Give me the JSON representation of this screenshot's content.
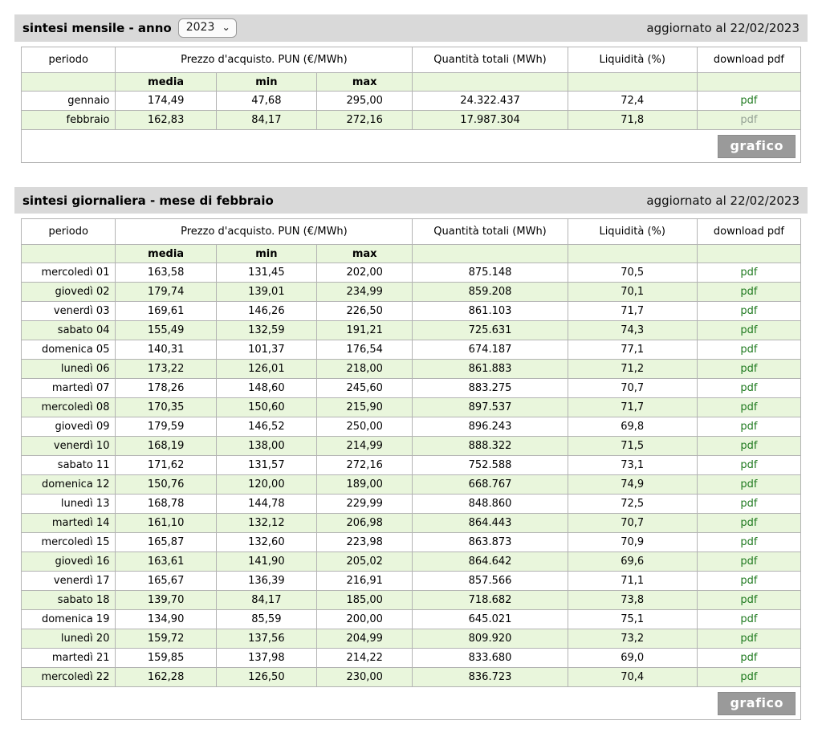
{
  "headers": {
    "periodo": "periodo",
    "prezzo": "Prezzo d'acquisto. PUN (€/MWh)",
    "media": "media",
    "min": "min",
    "max": "max",
    "quantita": "Quantità totali (MWh)",
    "liquidita": "Liquidità (%)",
    "download": "download pdf"
  },
  "monthly": {
    "title": "sintesi mensile - anno",
    "year_selected": "2023",
    "year_options": [
      "2023"
    ],
    "updated": "aggiornato al 22/02/2023",
    "grafico_label": "grafico",
    "rows": [
      {
        "periodo": "gennaio",
        "media": "174,49",
        "min": "47,68",
        "max": "295,00",
        "quantita": "24.322.437",
        "liquidita": "72,4",
        "pdf": "pdf",
        "pdf_muted": false
      },
      {
        "periodo": "febbraio",
        "media": "162,83",
        "min": "84,17",
        "max": "272,16",
        "quantita": "17.987.304",
        "liquidita": "71,8",
        "pdf": "pdf",
        "pdf_muted": true
      }
    ]
  },
  "daily": {
    "title": "sintesi giornaliera - mese di febbraio",
    "updated": "aggiornato al 22/02/2023",
    "grafico_label": "grafico",
    "rows": [
      {
        "periodo": "mercoledì 01",
        "media": "163,58",
        "min": "131,45",
        "max": "202,00",
        "quantita": "875.148",
        "liquidita": "70,5",
        "pdf": "pdf",
        "pdf_muted": false
      },
      {
        "periodo": "giovedì 02",
        "media": "179,74",
        "min": "139,01",
        "max": "234,99",
        "quantita": "859.208",
        "liquidita": "70,1",
        "pdf": "pdf",
        "pdf_muted": false
      },
      {
        "periodo": "venerdì 03",
        "media": "169,61",
        "min": "146,26",
        "max": "226,50",
        "quantita": "861.103",
        "liquidita": "71,7",
        "pdf": "pdf",
        "pdf_muted": false
      },
      {
        "periodo": "sabato 04",
        "media": "155,49",
        "min": "132,59",
        "max": "191,21",
        "quantita": "725.631",
        "liquidita": "74,3",
        "pdf": "pdf",
        "pdf_muted": false
      },
      {
        "periodo": "domenica 05",
        "media": "140,31",
        "min": "101,37",
        "max": "176,54",
        "quantita": "674.187",
        "liquidita": "77,1",
        "pdf": "pdf",
        "pdf_muted": false
      },
      {
        "periodo": "lunedì 06",
        "media": "173,22",
        "min": "126,01",
        "max": "218,00",
        "quantita": "861.883",
        "liquidita": "71,2",
        "pdf": "pdf",
        "pdf_muted": false
      },
      {
        "periodo": "martedì 07",
        "media": "178,26",
        "min": "148,60",
        "max": "245,60",
        "quantita": "883.275",
        "liquidita": "70,7",
        "pdf": "pdf",
        "pdf_muted": false
      },
      {
        "periodo": "mercoledì 08",
        "media": "170,35",
        "min": "150,60",
        "max": "215,90",
        "quantita": "897.537",
        "liquidita": "71,7",
        "pdf": "pdf",
        "pdf_muted": false
      },
      {
        "periodo": "giovedì 09",
        "media": "179,59",
        "min": "146,52",
        "max": "250,00",
        "quantita": "896.243",
        "liquidita": "69,8",
        "pdf": "pdf",
        "pdf_muted": false
      },
      {
        "periodo": "venerdì 10",
        "media": "168,19",
        "min": "138,00",
        "max": "214,99",
        "quantita": "888.322",
        "liquidita": "71,5",
        "pdf": "pdf",
        "pdf_muted": false
      },
      {
        "periodo": "sabato 11",
        "media": "171,62",
        "min": "131,57",
        "max": "272,16",
        "quantita": "752.588",
        "liquidita": "73,1",
        "pdf": "pdf",
        "pdf_muted": false
      },
      {
        "periodo": "domenica 12",
        "media": "150,76",
        "min": "120,00",
        "max": "189,00",
        "quantita": "668.767",
        "liquidita": "74,9",
        "pdf": "pdf",
        "pdf_muted": false
      },
      {
        "periodo": "lunedì 13",
        "media": "168,78",
        "min": "144,78",
        "max": "229,99",
        "quantita": "848.860",
        "liquidita": "72,5",
        "pdf": "pdf",
        "pdf_muted": false
      },
      {
        "periodo": "martedì 14",
        "media": "161,10",
        "min": "132,12",
        "max": "206,98",
        "quantita": "864.443",
        "liquidita": "70,7",
        "pdf": "pdf",
        "pdf_muted": false
      },
      {
        "periodo": "mercoledì 15",
        "media": "165,87",
        "min": "132,60",
        "max": "223,98",
        "quantita": "863.873",
        "liquidita": "70,9",
        "pdf": "pdf",
        "pdf_muted": false
      },
      {
        "periodo": "giovedì 16",
        "media": "163,61",
        "min": "141,90",
        "max": "205,02",
        "quantita": "864.642",
        "liquidita": "69,6",
        "pdf": "pdf",
        "pdf_muted": false
      },
      {
        "periodo": "venerdì 17",
        "media": "165,67",
        "min": "136,39",
        "max": "216,91",
        "quantita": "857.566",
        "liquidita": "71,1",
        "pdf": "pdf",
        "pdf_muted": false
      },
      {
        "periodo": "sabato 18",
        "media": "139,70",
        "min": "84,17",
        "max": "185,00",
        "quantita": "718.682",
        "liquidita": "73,8",
        "pdf": "pdf",
        "pdf_muted": false
      },
      {
        "periodo": "domenica 19",
        "media": "134,90",
        "min": "85,59",
        "max": "200,00",
        "quantita": "645.021",
        "liquidita": "75,1",
        "pdf": "pdf",
        "pdf_muted": false
      },
      {
        "periodo": "lunedì 20",
        "media": "159,72",
        "min": "137,56",
        "max": "204,99",
        "quantita": "809.920",
        "liquidita": "73,2",
        "pdf": "pdf",
        "pdf_muted": false
      },
      {
        "periodo": "martedì 21",
        "media": "159,85",
        "min": "137,98",
        "max": "214,22",
        "quantita": "833.680",
        "liquidita": "69,0",
        "pdf": "pdf",
        "pdf_muted": false
      },
      {
        "periodo": "mercoledì 22",
        "media": "162,28",
        "min": "126,50",
        "max": "230,00",
        "quantita": "836.723",
        "liquidita": "70,4",
        "pdf": "pdf",
        "pdf_muted": false
      }
    ]
  },
  "colors": {
    "title_band": "#d9d9d9",
    "row_green": "#e9f6dc",
    "pdf_link_green": "#1f7a1f",
    "pdf_link_muted": "#95a295",
    "grafico_button_gray": "#9a9a9a"
  }
}
